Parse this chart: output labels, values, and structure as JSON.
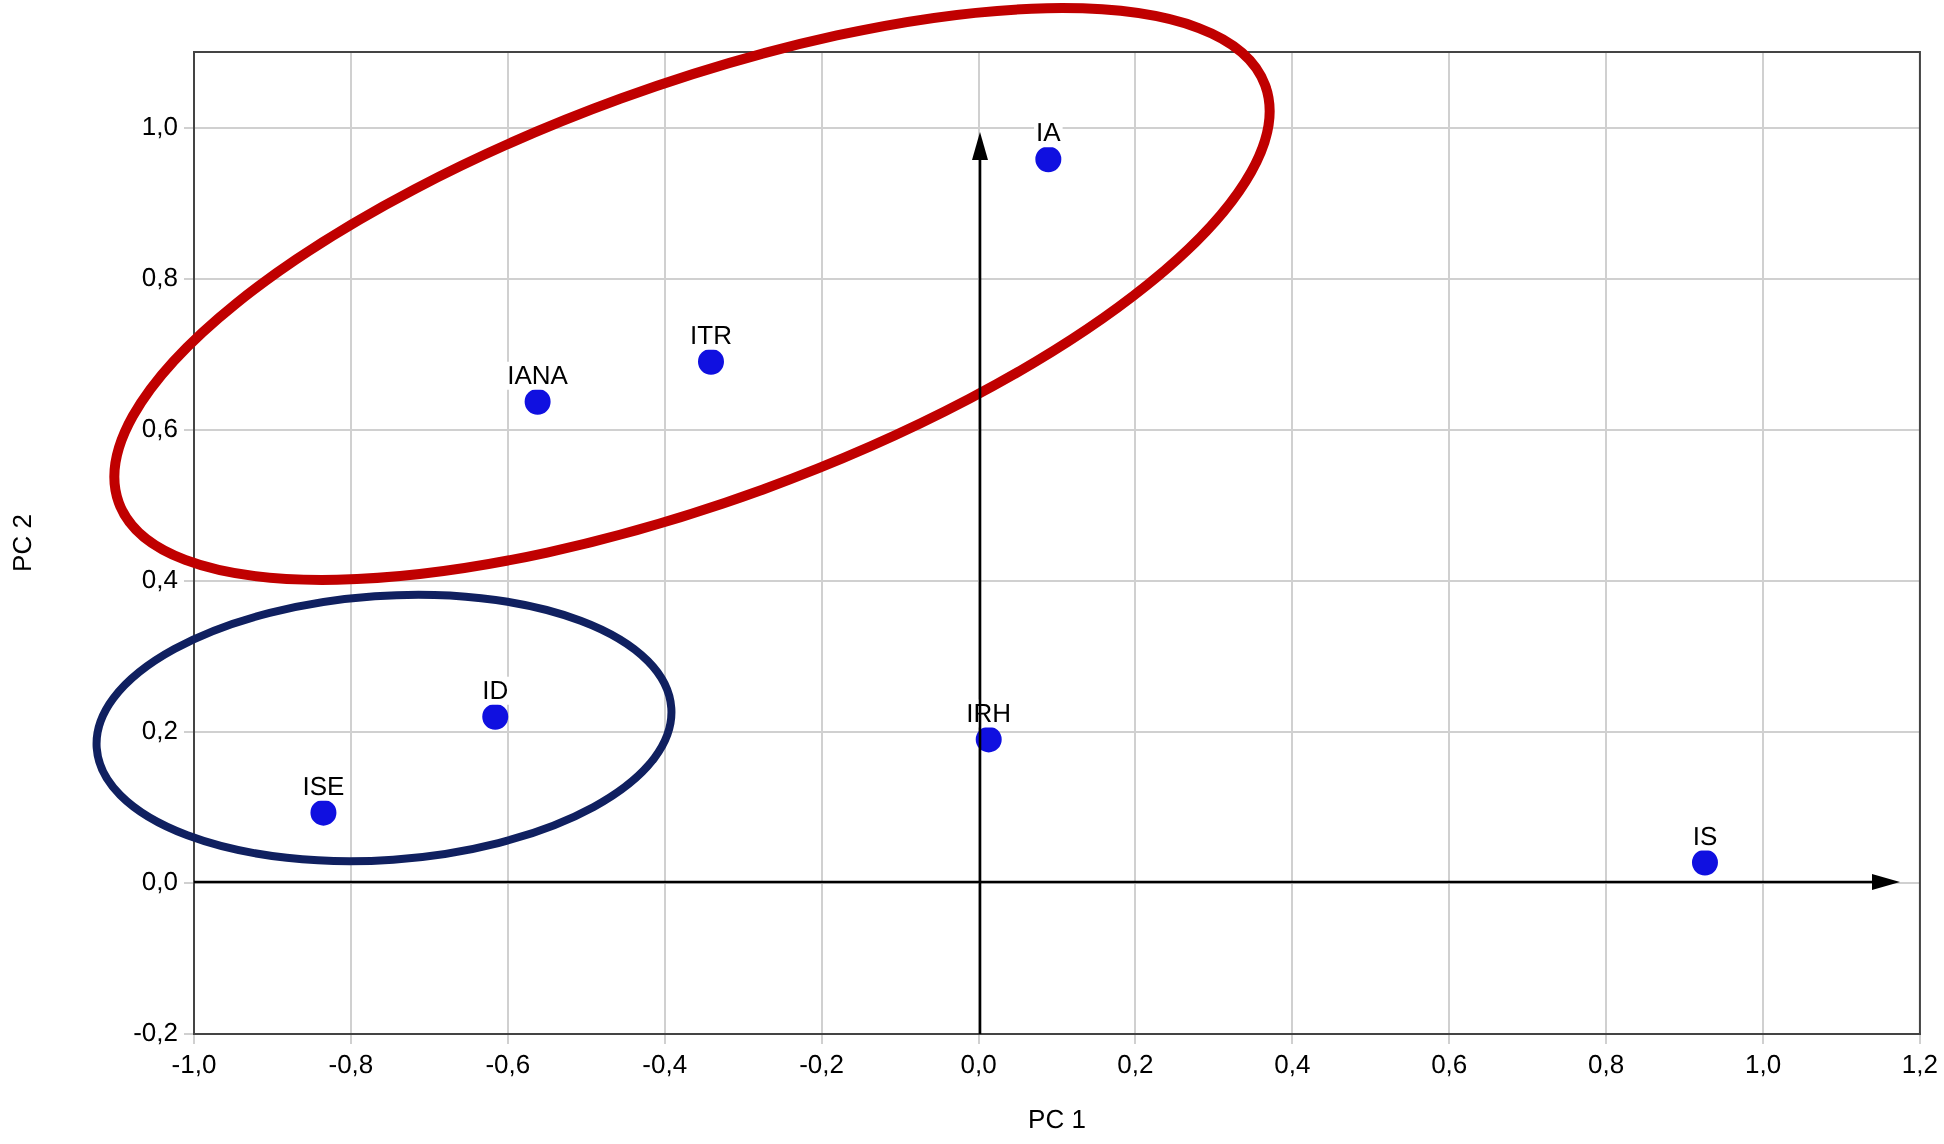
{
  "chart_data": {
    "type": "scatter",
    "xlabel": "PC 1",
    "ylabel": "PC 2",
    "x": [
      0.089,
      -0.341,
      -0.562,
      -0.616,
      -0.835,
      0.013,
      0.926
    ],
    "values": [
      0.958,
      0.69,
      0.637,
      0.22,
      0.093,
      0.19,
      0.027
    ],
    "color": "#1010e0",
    "marker": "circle",
    "grid": true,
    "legend": false,
    "xlim": [
      -1.0,
      1.2
    ],
    "ylim": [
      -0.2,
      1.1
    ],
    "xticks": [
      {
        "value": -1.0,
        "label": "-1,0"
      },
      {
        "value": -0.8,
        "label": "-0,8"
      },
      {
        "value": -0.6,
        "label": "-0,6"
      },
      {
        "value": -0.4,
        "label": "-0,4"
      },
      {
        "value": -0.2,
        "label": "-0,2"
      },
      {
        "value": 0,
        "label": "0,0"
      },
      {
        "value": 0.2,
        "label": "0,2"
      },
      {
        "value": 0.4,
        "label": "0,4"
      },
      {
        "value": 0.6,
        "label": "0,6"
      },
      {
        "value": 0.8,
        "label": "0,8"
      },
      {
        "value": 1.0,
        "label": "1,0"
      },
      {
        "value": 1.2,
        "label": "1,2"
      }
    ],
    "yticks": [
      {
        "value": -0.2,
        "label": "-0,2"
      },
      {
        "value": 0,
        "label": "0,0"
      },
      {
        "value": 0.2,
        "label": "0,2"
      },
      {
        "value": 0.4,
        "label": "0,4"
      },
      {
        "value": 0.6,
        "label": "0,6"
      },
      {
        "value": 0.8,
        "label": "0,8"
      },
      {
        "value": 1.0,
        "label": "1,0"
      }
    ],
    "annotations": [
      {
        "text": "IA",
        "x": 0.089,
        "y": 0.958
      },
      {
        "text": "ITR",
        "x": -0.341,
        "y": 0.69
      },
      {
        "text": "IANA",
        "x": -0.562,
        "y": 0.637
      },
      {
        "text": "ID",
        "x": -0.616,
        "y": 0.22
      },
      {
        "text": "ISE",
        "x": -0.835,
        "y": 0.093
      },
      {
        "text": "IRH",
        "x": 0.013,
        "y": 0.19
      },
      {
        "text": "IS",
        "x": 0.926,
        "y": 0.027
      }
    ]
  }
}
